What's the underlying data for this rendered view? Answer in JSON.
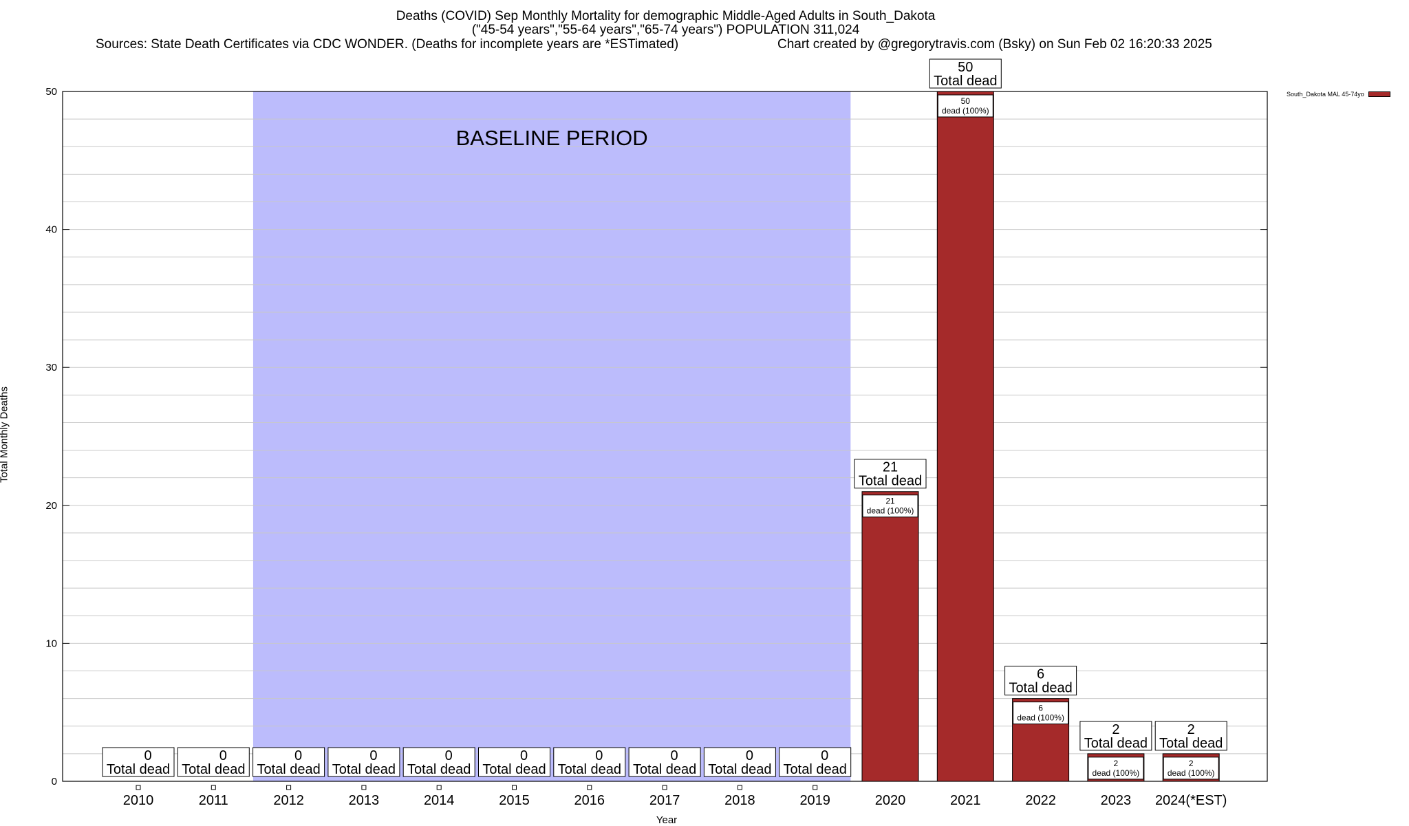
{
  "chart_data": {
    "type": "bar",
    "title": "Deaths (COVID) Sep Monthly Mortality for demographic Middle-Aged Adults in South_Dakota",
    "subtitle": "(\"45-54 years\",\"55-64 years\",\"65-74 years\") POPULATION 311,024",
    "sources": "Sources: State Death Certificates via CDC WONDER. (Deaths for incomplete years are *ESTimated)",
    "credit": "Chart created by @gregorytravis.com (Bsky) on Sun Feb 02 16:20:33 2025",
    "xlabel": "Year",
    "ylabel": "Total Monthly Deaths",
    "ylim": [
      0,
      50
    ],
    "yticks": [
      0,
      10,
      20,
      30,
      40,
      50
    ],
    "grid": true,
    "legend_position": "top-right",
    "categories": [
      "2010",
      "2011",
      "2012",
      "2013",
      "2014",
      "2015",
      "2016",
      "2017",
      "2018",
      "2019",
      "2020",
      "2021",
      "2022",
      "2023",
      "2024(*EST)"
    ],
    "series": [
      {
        "name": "South_Dakota MAL 45-74yo",
        "color": "#a52a2a",
        "values": [
          0,
          0,
          0,
          0,
          0,
          0,
          0,
          0,
          0,
          0,
          21,
          50,
          6,
          2,
          2
        ]
      }
    ],
    "total_label": "Total dead",
    "inner_label_suffix": "dead (100%)",
    "baseline": {
      "label": "BASELINE PERIOD",
      "from_category": "2012",
      "to_category": "2019",
      "color": "#bcbcfc"
    }
  }
}
